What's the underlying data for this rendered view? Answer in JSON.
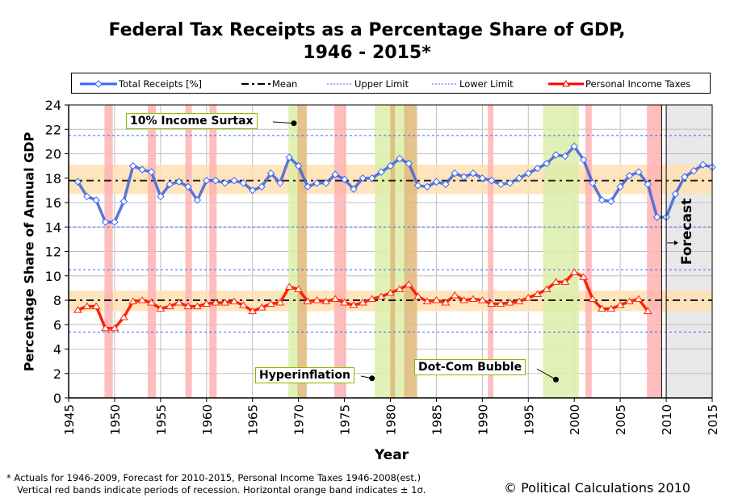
{
  "chart_data": {
    "type": "line",
    "title": "Federal Tax Receipts as a Percentage Share of GDP,",
    "title_line2": "1946 - 2015*",
    "xlabel": "Year",
    "ylabel": "Percentage Share of Annual GDP",
    "xlim": [
      1945,
      2015
    ],
    "ylim": [
      0,
      24
    ],
    "x_ticks": [
      "1945",
      "1950",
      "1955",
      "1960",
      "1965",
      "1970",
      "1975",
      "1980",
      "1985",
      "1990",
      "1995",
      "2000",
      "2005",
      "2010",
      "2015"
    ],
    "y_ticks": [
      "0",
      "2",
      "4",
      "6",
      "8",
      "10",
      "12",
      "14",
      "16",
      "18",
      "20",
      "22",
      "24"
    ],
    "grid": true,
    "legend_position": "top",
    "legend": [
      {
        "name": "Total Receipts [%]",
        "style": "line-diamond",
        "color": "#3366ff"
      },
      {
        "name": "Mean",
        "style": "dash-dot",
        "color": "#000000"
      },
      {
        "name": "Upper Limit",
        "style": "dotted",
        "color": "#3366ff"
      },
      {
        "name": "Lower Limit",
        "style": "dotted",
        "color": "#3366ff"
      },
      {
        "name": "Personal Income Taxes",
        "style": "line-triangle",
        "color": "#ff0000"
      }
    ],
    "series": [
      {
        "name": "Total Receipts [%]",
        "color": "#3366ff",
        "x": [
          1946,
          1947,
          1948,
          1949,
          1950,
          1951,
          1952,
          1953,
          1954,
          1955,
          1956,
          1957,
          1958,
          1959,
          1960,
          1961,
          1962,
          1963,
          1964,
          1965,
          1966,
          1967,
          1968,
          1969,
          1970,
          1971,
          1972,
          1973,
          1974,
          1975,
          1976,
          1977,
          1978,
          1979,
          1980,
          1981,
          1982,
          1983,
          1984,
          1985,
          1986,
          1987,
          1988,
          1989,
          1990,
          1991,
          1992,
          1993,
          1994,
          1995,
          1996,
          1997,
          1998,
          1999,
          2000,
          2001,
          2002,
          2003,
          2004,
          2005,
          2006,
          2007,
          2008,
          2009,
          2010,
          2011,
          2012,
          2013,
          2014,
          2015
        ],
        "values": [
          17.7,
          16.5,
          16.2,
          14.4,
          14.4,
          16.1,
          19.0,
          18.7,
          18.5,
          16.5,
          17.5,
          17.7,
          17.3,
          16.2,
          17.8,
          17.8,
          17.6,
          17.8,
          17.6,
          17.0,
          17.3,
          18.4,
          17.6,
          19.7,
          19.0,
          17.3,
          17.6,
          17.6,
          18.3,
          17.9,
          17.1,
          18.0,
          18.0,
          18.5,
          19.0,
          19.6,
          19.2,
          17.4,
          17.3,
          17.7,
          17.5,
          18.4,
          18.1,
          18.4,
          18.0,
          17.8,
          17.5,
          17.6,
          18.0,
          18.4,
          18.8,
          19.2,
          19.9,
          19.8,
          20.6,
          19.5,
          17.6,
          16.2,
          16.1,
          17.3,
          18.2,
          18.5,
          17.5,
          14.8,
          14.8,
          16.7,
          18.1,
          18.6,
          19.1,
          18.9
        ]
      },
      {
        "name": "Personal Income Taxes",
        "color": "#ff2200",
        "x": [
          1946,
          1947,
          1948,
          1949,
          1950,
          1951,
          1952,
          1953,
          1954,
          1955,
          1956,
          1957,
          1958,
          1959,
          1960,
          1961,
          1962,
          1963,
          1964,
          1965,
          1966,
          1967,
          1968,
          1969,
          1970,
          1971,
          1972,
          1973,
          1974,
          1975,
          1976,
          1977,
          1978,
          1979,
          1980,
          1981,
          1982,
          1983,
          1984,
          1985,
          1986,
          1987,
          1988,
          1989,
          1990,
          1991,
          1992,
          1993,
          1994,
          1995,
          1996,
          1997,
          1998,
          1999,
          2000,
          2001,
          2002,
          2003,
          2004,
          2005,
          2006,
          2007,
          2008
        ],
        "values": [
          7.2,
          7.5,
          7.5,
          5.7,
          5.7,
          6.6,
          7.9,
          8.0,
          7.8,
          7.3,
          7.5,
          7.8,
          7.5,
          7.5,
          7.7,
          7.8,
          7.8,
          7.9,
          7.6,
          7.1,
          7.4,
          7.7,
          7.8,
          9.1,
          8.9,
          7.9,
          8.0,
          7.9,
          8.1,
          7.8,
          7.6,
          7.8,
          8.1,
          8.3,
          8.6,
          8.9,
          9.3,
          8.3,
          7.9,
          8.0,
          7.8,
          8.4,
          8.0,
          8.1,
          8.0,
          7.7,
          7.7,
          7.8,
          7.9,
          8.2,
          8.5,
          8.9,
          9.5,
          9.5,
          10.3,
          9.9,
          8.1,
          7.3,
          7.3,
          7.6,
          7.9,
          8.1,
          7.1
        ]
      }
    ],
    "reference_lines": {
      "total": {
        "mean": 17.8,
        "upper_limit": 21.5,
        "lower_limit": 14.0,
        "sigma_band": [
          16.7,
          19.1
        ]
      },
      "personal_income": {
        "mean": 8.0,
        "upper_limit": 10.5,
        "lower_limit": 5.4,
        "sigma_band": [
          7.1,
          8.8
        ]
      }
    },
    "recession_bands": [
      [
        1948.9,
        1949.8
      ],
      [
        1953.6,
        1954.5
      ],
      [
        1957.7,
        1958.4
      ],
      [
        1960.3,
        1961.1
      ],
      [
        1969.9,
        1970.9
      ],
      [
        1973.9,
        1975.2
      ],
      [
        1980.0,
        1980.5
      ],
      [
        1981.5,
        1982.9
      ],
      [
        1990.6,
        1991.2
      ],
      [
        2001.2,
        2001.9
      ],
      [
        2007.9,
        2009.5
      ]
    ],
    "highlight_bands": [
      [
        1968.9,
        1970.0
      ],
      [
        1978.3,
        1981.8
      ],
      [
        1996.6,
        2000.5
      ]
    ],
    "forecast_region": [
      2010,
      2015
    ],
    "forecast_divider": 2009.5,
    "annotations": [
      {
        "text": "10% Income Surtax",
        "target_year": 1969.5,
        "target_value": 22.5
      },
      {
        "text": "Hyperinflation",
        "target_year": 1978.0,
        "target_value": 1.6
      },
      {
        "text": "Dot-Com Bubble",
        "target_year": 1998.0,
        "target_value": 1.5
      },
      {
        "text": "Forecast",
        "target_year": 2010.0,
        "target_value": 12.7
      }
    ],
    "colors": {
      "recession": "#ffb3b3",
      "highlight": "#dcedaa",
      "overlap": "#e0b87a",
      "sigma_band": "#ffe0b3",
      "forecast_bg": "#e8e8e8",
      "grid": "#bfbfbf"
    }
  },
  "footnote": {
    "line1": "* Actuals for 1946-2009, Forecast for 2010-2015, Personal Income Taxes 1946-2008(est.)",
    "line2": "Vertical red bands indicate periods of recession.  Horizontal orange band indicates ± 1σ."
  },
  "copyright": "© Political Calculations 2010"
}
